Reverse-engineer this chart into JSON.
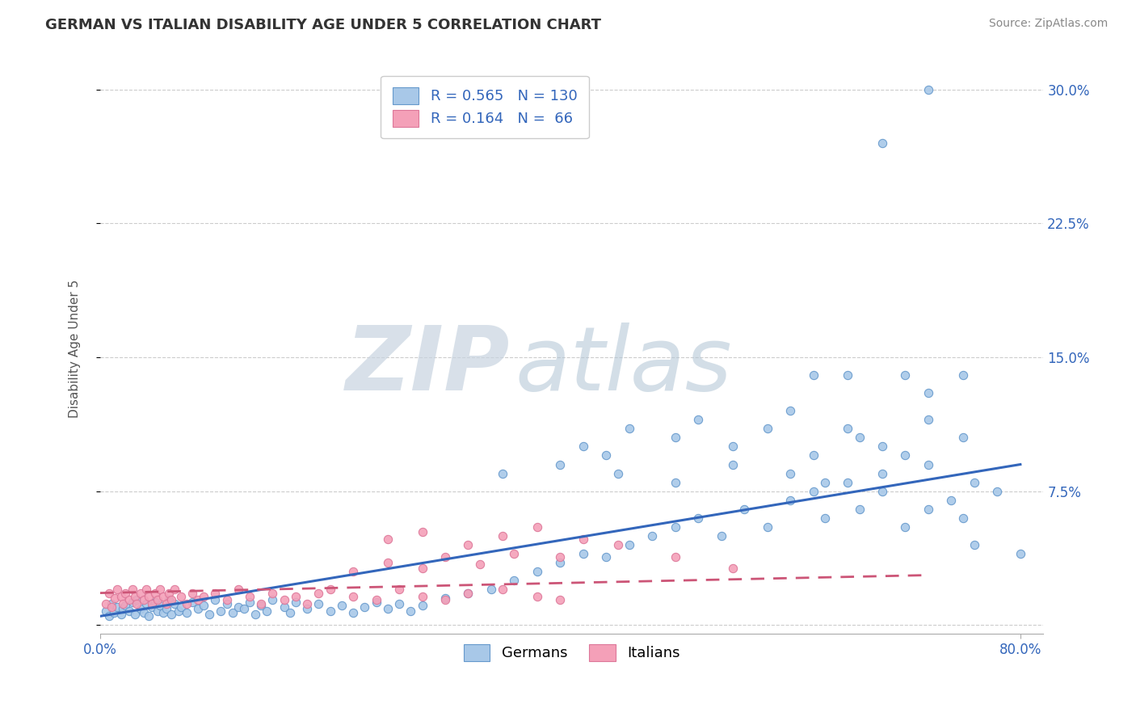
{
  "title": "GERMAN VS ITALIAN DISABILITY AGE UNDER 5 CORRELATION CHART",
  "source": "Source: ZipAtlas.com",
  "ylabel": "Disability Age Under 5",
  "xlim": [
    0.0,
    0.82
  ],
  "ylim": [
    -0.005,
    0.315
  ],
  "x_tick_positions": [
    0.0,
    0.8
  ],
  "x_tick_labels": [
    "0.0%",
    "80.0%"
  ],
  "y_tick_positions": [
    0.0,
    0.075,
    0.15,
    0.225,
    0.3
  ],
  "y_tick_labels": [
    "",
    "7.5%",
    "15.0%",
    "22.5%",
    "30.0%"
  ],
  "german_R": 0.565,
  "german_N": 130,
  "italian_R": 0.164,
  "italian_N": 66,
  "german_color": "#A8C8E8",
  "italian_color": "#F4A0B8",
  "german_edge_color": "#6699CC",
  "italian_edge_color": "#DD7799",
  "german_line_color": "#3366BB",
  "italian_line_color": "#CC5577",
  "watermark_zip_color": "#C8D4E0",
  "watermark_atlas_color": "#B0C4D4",
  "legend_text_color": "#3366BB",
  "title_color": "#333333",
  "source_color": "#888888",
  "ylabel_color": "#555555",
  "grid_color": "#CCCCCC",
  "axis_color": "#AAAAAA",
  "tick_label_color": "#3366BB",
  "german_scatter_x": [
    0.005,
    0.008,
    0.01,
    0.012,
    0.015,
    0.018,
    0.02,
    0.022,
    0.025,
    0.028,
    0.03,
    0.032,
    0.035,
    0.038,
    0.04,
    0.042,
    0.045,
    0.048,
    0.05,
    0.052,
    0.055,
    0.058,
    0.06,
    0.062,
    0.065,
    0.068,
    0.07,
    0.075,
    0.08,
    0.085,
    0.09,
    0.095,
    0.1,
    0.105,
    0.11,
    0.115,
    0.12,
    0.125,
    0.13,
    0.135,
    0.14,
    0.145,
    0.15,
    0.16,
    0.165,
    0.17,
    0.18,
    0.19,
    0.2,
    0.21,
    0.22,
    0.23,
    0.24,
    0.25,
    0.26,
    0.27,
    0.28,
    0.3,
    0.32,
    0.34,
    0.36,
    0.38,
    0.4,
    0.42,
    0.44,
    0.46,
    0.48,
    0.5,
    0.52,
    0.54,
    0.56,
    0.58,
    0.6,
    0.62,
    0.63,
    0.65,
    0.66,
    0.68,
    0.7,
    0.72,
    0.74,
    0.75,
    0.76,
    0.78,
    0.8,
    0.42,
    0.44,
    0.46,
    0.5,
    0.52,
    0.55,
    0.58,
    0.6,
    0.62,
    0.65,
    0.66,
    0.68,
    0.7,
    0.72,
    0.75,
    0.35,
    0.4,
    0.45,
    0.5,
    0.55,
    0.6,
    0.63,
    0.68,
    0.72,
    0.76,
    0.62,
    0.65,
    0.7,
    0.72,
    0.75,
    0.68,
    0.72
  ],
  "german_scatter_y": [
    0.008,
    0.005,
    0.012,
    0.007,
    0.01,
    0.006,
    0.009,
    0.011,
    0.008,
    0.013,
    0.006,
    0.014,
    0.009,
    0.007,
    0.012,
    0.005,
    0.01,
    0.013,
    0.008,
    0.011,
    0.007,
    0.009,
    0.014,
    0.006,
    0.012,
    0.008,
    0.01,
    0.007,
    0.013,
    0.009,
    0.011,
    0.006,
    0.014,
    0.008,
    0.012,
    0.007,
    0.01,
    0.009,
    0.013,
    0.006,
    0.011,
    0.008,
    0.014,
    0.01,
    0.007,
    0.013,
    0.009,
    0.012,
    0.008,
    0.011,
    0.007,
    0.01,
    0.013,
    0.009,
    0.012,
    0.008,
    0.011,
    0.015,
    0.018,
    0.02,
    0.025,
    0.03,
    0.035,
    0.04,
    0.038,
    0.045,
    0.05,
    0.055,
    0.06,
    0.05,
    0.065,
    0.055,
    0.07,
    0.075,
    0.06,
    0.08,
    0.065,
    0.075,
    0.055,
    0.065,
    0.07,
    0.06,
    0.045,
    0.075,
    0.04,
    0.1,
    0.095,
    0.11,
    0.105,
    0.115,
    0.1,
    0.11,
    0.12,
    0.095,
    0.11,
    0.105,
    0.1,
    0.095,
    0.115,
    0.105,
    0.085,
    0.09,
    0.085,
    0.08,
    0.09,
    0.085,
    0.08,
    0.085,
    0.09,
    0.08,
    0.14,
    0.14,
    0.14,
    0.13,
    0.14,
    0.27,
    0.3
  ],
  "italian_scatter_x": [
    0.005,
    0.008,
    0.01,
    0.013,
    0.015,
    0.018,
    0.02,
    0.022,
    0.025,
    0.028,
    0.03,
    0.032,
    0.035,
    0.038,
    0.04,
    0.042,
    0.045,
    0.048,
    0.05,
    0.052,
    0.055,
    0.058,
    0.06,
    0.062,
    0.065,
    0.07,
    0.075,
    0.08,
    0.085,
    0.09,
    0.1,
    0.11,
    0.12,
    0.13,
    0.14,
    0.15,
    0.16,
    0.17,
    0.18,
    0.19,
    0.2,
    0.22,
    0.24,
    0.26,
    0.28,
    0.3,
    0.32,
    0.35,
    0.38,
    0.4,
    0.22,
    0.25,
    0.28,
    0.3,
    0.33,
    0.36,
    0.4,
    0.25,
    0.28,
    0.32,
    0.35,
    0.38,
    0.42,
    0.45,
    0.5,
    0.55
  ],
  "italian_scatter_y": [
    0.012,
    0.018,
    0.01,
    0.015,
    0.02,
    0.016,
    0.012,
    0.018,
    0.014,
    0.02,
    0.016,
    0.012,
    0.018,
    0.014,
    0.02,
    0.016,
    0.012,
    0.018,
    0.014,
    0.02,
    0.016,
    0.012,
    0.018,
    0.014,
    0.02,
    0.016,
    0.012,
    0.018,
    0.014,
    0.016,
    0.018,
    0.014,
    0.02,
    0.016,
    0.012,
    0.018,
    0.014,
    0.016,
    0.012,
    0.018,
    0.02,
    0.016,
    0.014,
    0.02,
    0.016,
    0.014,
    0.018,
    0.02,
    0.016,
    0.014,
    0.03,
    0.035,
    0.032,
    0.038,
    0.034,
    0.04,
    0.038,
    0.048,
    0.052,
    0.045,
    0.05,
    0.055,
    0.048,
    0.045,
    0.038,
    0.032
  ],
  "german_line_x": [
    0.0,
    0.8
  ],
  "german_line_y": [
    0.005,
    0.09
  ],
  "italian_line_x": [
    0.0,
    0.72
  ],
  "italian_line_y": [
    0.018,
    0.028
  ]
}
